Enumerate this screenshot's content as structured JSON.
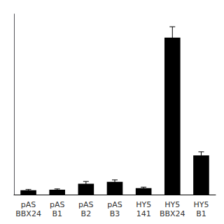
{
  "chart_data": {
    "type": "bar",
    "categories": [
      "pAS\nBBX24",
      "pAS\nB1",
      "pAS\nB2",
      "pAS\nB3",
      "HY5\n141",
      "HY5\nBBX24",
      "HY5\nB1"
    ],
    "values": [
      0.022,
      0.025,
      0.055,
      0.065,
      0.033,
      0.8,
      0.2
    ],
    "errors": [
      0.004,
      0.004,
      0.012,
      0.01,
      0.005,
      0.055,
      0.018
    ],
    "color": "#000000",
    "ylim": [
      0,
      0.92
    ],
    "yticks": [],
    "grid": false,
    "tick_labels": "x"
  }
}
